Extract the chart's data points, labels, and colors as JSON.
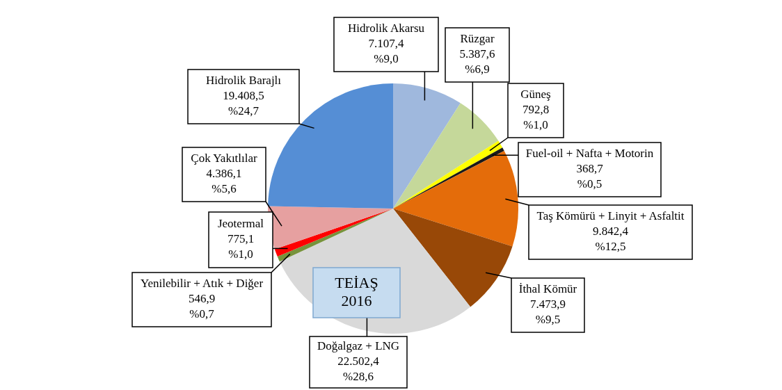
{
  "chart_data": {
    "type": "pie",
    "categories": [
      "Hidrolik Akarsu",
      "Rüzgar",
      "Güneş",
      "Fuel-oil + Nafta + Motorin",
      "Taş Kömürü + Linyit + Asfaltit",
      "İthal Kömür",
      "Doğalgaz + LNG",
      "Yenilebilir + Atık + Diğer",
      "Jeotermal",
      "Çok Yakıtlılar",
      "Hidrolik Barajlı"
    ],
    "values": [
      7107.4,
      5387.6,
      792.8,
      368.7,
      9842.4,
      7473.9,
      22502.4,
      546.9,
      775.1,
      4386.1,
      19408.5
    ],
    "value_labels": [
      "7.107,4\n%9,0",
      "5.387,6\n%6,9",
      "792,8\n%1,0",
      "368,7\n%0,5",
      "9.842,4\n%12,5",
      "7.473,9\n%9,5",
      "22.502,4\n%28,6",
      "546,9\n%0,7",
      "775,1\n%1,0",
      "4.386,1\n%5,6",
      "19.408,5\n%24,7"
    ],
    "colors": [
      "#9fb8dd",
      "#c5d89a",
      "#ffff00",
      "#1a1a1a",
      "#e46c0a",
      "#984807",
      "#d9d9d9",
      "#77933c",
      "#ff0000",
      "#e6a0a0",
      "#558ed5"
    ],
    "legend": false,
    "annotations": [
      "TEİAŞ\n2016"
    ]
  }
}
